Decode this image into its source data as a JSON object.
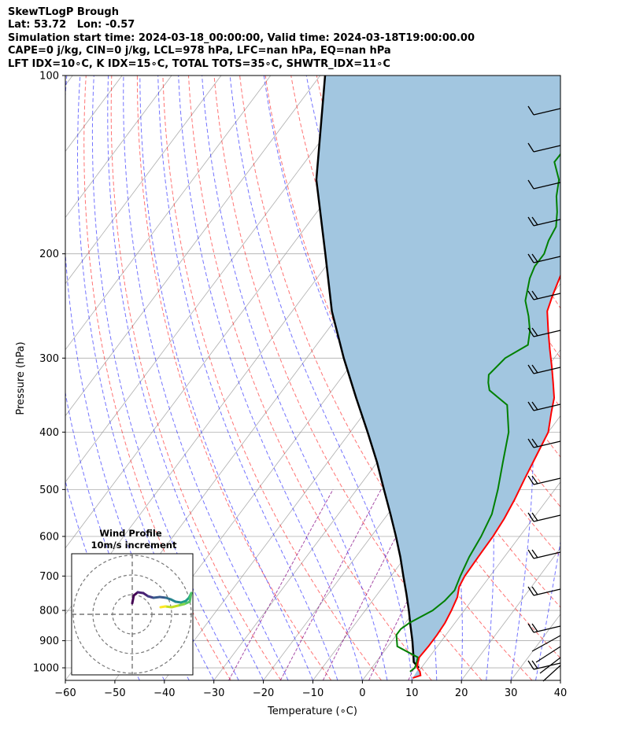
{
  "header": {
    "lines": [
      "SkewTLogP Brough",
      "Lat: 53.72   Lon: -0.57",
      "Simulation start time: 2024-03-18_00:00:00, Valid time: 2024-03-18T19:00:00.00",
      "CAPE=0 j/kg, CIN=0 j/kg, LCL=978 hPa, LFC=nan hPa, EQ=nan hPa",
      "LFT IDX=10∘C, K IDX=15∘C, TOTAL TOTS=35∘C, SHWTR_IDX=11∘C"
    ]
  },
  "chart_data": {
    "type": "line",
    "chart_kind": "skew-t log-p",
    "xlabel": "Temperature (∘C)",
    "ylabel": "Pressure (hPa)",
    "xlim": [
      -60,
      40
    ],
    "ylim": [
      1050,
      100
    ],
    "y_scale": "log",
    "x_ticks": [
      -60,
      -50,
      -40,
      -30,
      -20,
      -10,
      0,
      10,
      20,
      30,
      40
    ],
    "x_tick_labels": [
      "−60",
      "−50",
      "−40",
      "−30",
      "−20",
      "−10",
      "0",
      "10",
      "20",
      "30",
      "40"
    ],
    "y_ticks": [
      1000,
      900,
      800,
      700,
      600,
      500,
      400,
      300,
      200,
      100
    ],
    "grid": true,
    "colors": {
      "temperature": "#ff0000",
      "dewpoint": "#008000",
      "parcel": "#000000",
      "shading": "#a2c6e0",
      "dry_adiabats": "#ff0000",
      "moist_adiabats": "#0000ff",
      "mixing_ratio": "#800080",
      "isotherms": "#999999"
    },
    "series": [
      {
        "key": "temperature",
        "pressure": [
          1040,
          1030,
          1015,
          1000,
          990,
          960,
          920,
          880,
          840,
          800,
          760,
          730,
          700,
          670,
          640,
          600,
          560,
          520,
          480,
          440,
          400,
          370,
          350,
          330,
          310,
          290,
          270,
          250,
          235,
          220,
          210,
          200,
          190,
          180,
          170,
          160,
          150,
          140,
          130,
          120,
          110,
          100
        ],
        "temperature": [
          9.8,
          11.0,
          10.3,
          9.2,
          8.8,
          8.0,
          8.2,
          8.2,
          8.0,
          7.4,
          6.6,
          5.4,
          4.9,
          4.8,
          4.7,
          4.6,
          4.2,
          3.4,
          2.3,
          1.2,
          0.0,
          -2.4,
          -4.0,
          -6.5,
          -9.2,
          -12.2,
          -15.3,
          -18.5,
          -19.8,
          -21.0,
          -21.8,
          -21.5,
          -20.3,
          -17.8,
          -14.2,
          -11.8,
          -9.2,
          -6.3,
          -4.0,
          -2.6,
          -1.6,
          -0.2
        ]
      },
      {
        "key": "dewpoint",
        "pressure": [
          1015,
          1000,
          985,
          960,
          920,
          880,
          860,
          840,
          800,
          770,
          740,
          700,
          650,
          600,
          550,
          500,
          450,
          400,
          360,
          340,
          330,
          320,
          300,
          285,
          270,
          255,
          240,
          220,
          210,
          200,
          190,
          180,
          170,
          160,
          150,
          140,
          130,
          120,
          110,
          100
        ],
        "dewpoint": [
          8.3,
          8.7,
          8.4,
          7.7,
          1.9,
          0.0,
          0.0,
          0.8,
          3.6,
          4.6,
          5.0,
          4.0,
          2.9,
          2.2,
          1.0,
          -1.5,
          -4.6,
          -8.0,
          -12.4,
          -18.2,
          -19.6,
          -20.7,
          -19.9,
          -17.3,
          -19.0,
          -21.5,
          -24.5,
          -27.0,
          -27.8,
          -27.8,
          -28.9,
          -29.5,
          -31.5,
          -34.0,
          -36.0,
          -39.6,
          -39.5,
          -38.8,
          -37.7,
          -36.7
        ]
      },
      {
        "key": "parcel",
        "pressure": [
          1000,
          978,
          950,
          900,
          850,
          800,
          750,
          700,
          650,
          600,
          550,
          500,
          450,
          400,
          350,
          300,
          250,
          200,
          150,
          100
        ],
        "temperature": [
          9.5,
          7.6,
          6.4,
          4.1,
          1.5,
          -1.2,
          -4.2,
          -7.5,
          -11.0,
          -15.0,
          -19.5,
          -24.5,
          -30.0,
          -36.5,
          -44.0,
          -52.5,
          -62.0,
          -72.0,
          -85.0,
          -99.0
        ]
      }
    ],
    "annotations": [
      "Wind Profile",
      "10m/s increment"
    ]
  },
  "inset": {
    "title": "Wind Profile",
    "subtitle": "10m/s increment"
  }
}
